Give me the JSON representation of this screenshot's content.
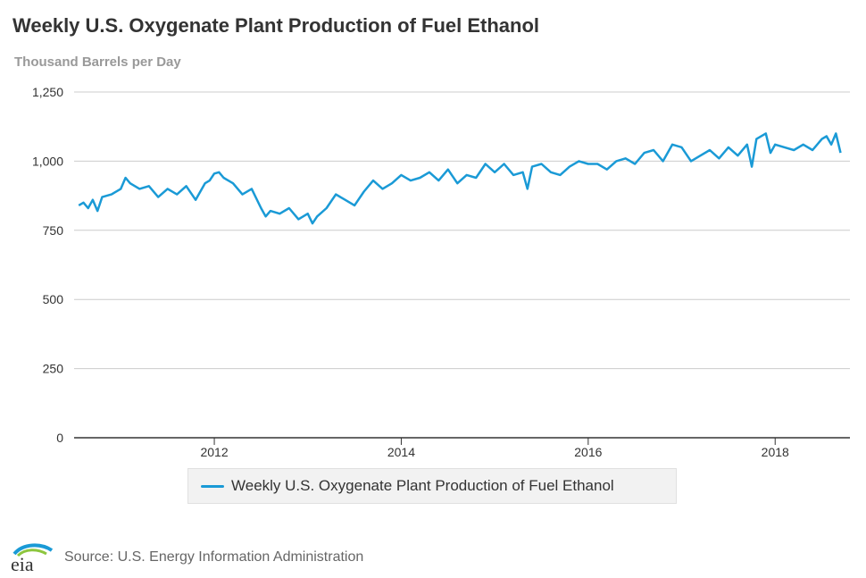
{
  "chart_data": {
    "type": "line",
    "title": "Weekly U.S. Oxygenate Plant Production of Fuel Ethanol",
    "subtitle": "Thousand Barrels per Day",
    "xlabel": "",
    "ylabel": "Thousand Barrels per Day",
    "xlim": [
      2010.5,
      2018.8
    ],
    "ylim": [
      0,
      1250
    ],
    "xticks": [
      2012,
      2014,
      2016,
      2018
    ],
    "yticks": [
      0,
      250,
      500,
      750,
      1000,
      1250
    ],
    "ytick_labels": [
      "0",
      "250",
      "500",
      "750",
      "1,000",
      "1,250"
    ],
    "grid": "horizontal",
    "legend_position": "bottom-center",
    "colors": {
      "series": "#1a9ad6",
      "grid": "#cccccc",
      "axis": "#333333"
    },
    "series": [
      {
        "name": "Weekly U.S. Oxygenate Plant Production of Fuel Ethanol",
        "x": [
          2010.55,
          2010.6,
          2010.65,
          2010.7,
          2010.75,
          2010.8,
          2010.9,
          2011.0,
          2011.05,
          2011.1,
          2011.2,
          2011.3,
          2011.4,
          2011.5,
          2011.6,
          2011.7,
          2011.8,
          2011.9,
          2011.95,
          2012.0,
          2012.05,
          2012.1,
          2012.2,
          2012.3,
          2012.4,
          2012.5,
          2012.55,
          2012.6,
          2012.7,
          2012.8,
          2012.9,
          2013.0,
          2013.05,
          2013.1,
          2013.2,
          2013.3,
          2013.4,
          2013.5,
          2013.6,
          2013.7,
          2013.8,
          2013.9,
          2014.0,
          2014.1,
          2014.2,
          2014.3,
          2014.4,
          2014.5,
          2014.6,
          2014.7,
          2014.8,
          2014.9,
          2015.0,
          2015.1,
          2015.2,
          2015.3,
          2015.35,
          2015.4,
          2015.5,
          2015.6,
          2015.7,
          2015.8,
          2015.9,
          2016.0,
          2016.1,
          2016.2,
          2016.3,
          2016.4,
          2016.5,
          2016.6,
          2016.7,
          2016.8,
          2016.9,
          2017.0,
          2017.1,
          2017.2,
          2017.3,
          2017.4,
          2017.5,
          2017.6,
          2017.7,
          2017.75,
          2017.8,
          2017.9,
          2017.95,
          2018.0,
          2018.1,
          2018.2,
          2018.3,
          2018.4,
          2018.5,
          2018.55,
          2018.6,
          2018.65,
          2018.7
        ],
        "values": [
          840,
          850,
          830,
          860,
          820,
          870,
          880,
          900,
          940,
          920,
          900,
          910,
          870,
          900,
          880,
          910,
          860,
          920,
          930,
          955,
          960,
          940,
          920,
          880,
          900,
          830,
          800,
          820,
          810,
          830,
          790,
          810,
          775,
          800,
          830,
          880,
          860,
          840,
          890,
          930,
          900,
          920,
          950,
          930,
          940,
          960,
          930,
          970,
          920,
          950,
          940,
          990,
          960,
          990,
          950,
          960,
          900,
          980,
          990,
          960,
          950,
          980,
          1000,
          990,
          990,
          970,
          1000,
          1010,
          990,
          1030,
          1040,
          1000,
          1060,
          1050,
          1000,
          1020,
          1040,
          1010,
          1050,
          1020,
          1060,
          980,
          1080,
          1100,
          1030,
          1060,
          1050,
          1040,
          1060,
          1040,
          1080,
          1090,
          1060,
          1100,
          1030
        ]
      }
    ]
  },
  "legend": {
    "label": "Weekly U.S. Oxygenate Plant Production of Fuel Ethanol"
  },
  "footer": {
    "source": "Source: U.S. Energy Information Administration",
    "logo_text": "eia"
  }
}
